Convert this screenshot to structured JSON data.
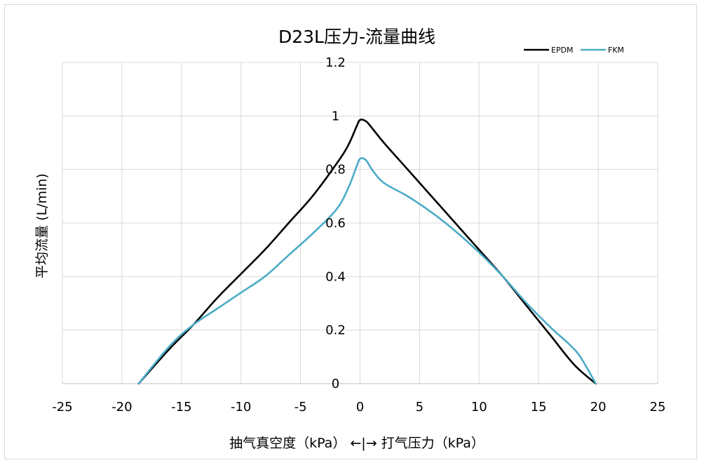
{
  "chart_data": {
    "type": "line",
    "title": "D23L压力-流量曲线",
    "ylabel": "平均流量 (L/min)",
    "xlabel": "抽气真空度（kPa） ←|→ 打气压力（kPa）",
    "xlim": [
      -25,
      25
    ],
    "ylim": [
      0,
      1.2
    ],
    "x_ticks": [
      "-25",
      "-20",
      "-15",
      "-10",
      "-5",
      "0",
      "5",
      "10",
      "15",
      "20",
      "25"
    ],
    "y_ticks": [
      "0",
      "0.2",
      "0.4",
      "0.6",
      "0.8",
      "1",
      "1.2"
    ],
    "grid": true,
    "legend_position": "top-right",
    "series": [
      {
        "name": "EPDM",
        "color": "#000000",
        "points": [
          [
            -18.6,
            0
          ],
          [
            -16,
            0.13
          ],
          [
            -14,
            0.22
          ],
          [
            -12,
            0.32
          ],
          [
            -10,
            0.41
          ],
          [
            -8,
            0.5
          ],
          [
            -6,
            0.6
          ],
          [
            -4,
            0.7
          ],
          [
            -2,
            0.82
          ],
          [
            -1,
            0.89
          ],
          [
            -0.3,
            0.96
          ],
          [
            0,
            0.985
          ],
          [
            0.5,
            0.98
          ],
          [
            1,
            0.955
          ],
          [
            2,
            0.9
          ],
          [
            4,
            0.8
          ],
          [
            6,
            0.7
          ],
          [
            8,
            0.6
          ],
          [
            10,
            0.5
          ],
          [
            12,
            0.4
          ],
          [
            14,
            0.29
          ],
          [
            16,
            0.18
          ],
          [
            18,
            0.07
          ],
          [
            19.8,
            0
          ]
        ]
      },
      {
        "name": "FKM",
        "color": "#4bacc6",
        "points": [
          [
            -18.6,
            0
          ],
          [
            -16,
            0.14
          ],
          [
            -14,
            0.22
          ],
          [
            -12,
            0.28
          ],
          [
            -10,
            0.34
          ],
          [
            -8,
            0.4
          ],
          [
            -6,
            0.48
          ],
          [
            -4,
            0.56
          ],
          [
            -2,
            0.65
          ],
          [
            -1,
            0.73
          ],
          [
            -0.3,
            0.81
          ],
          [
            0,
            0.84
          ],
          [
            0.5,
            0.835
          ],
          [
            1,
            0.8
          ],
          [
            2,
            0.75
          ],
          [
            4,
            0.7
          ],
          [
            6,
            0.64
          ],
          [
            8,
            0.57
          ],
          [
            10,
            0.49
          ],
          [
            12,
            0.4
          ],
          [
            14,
            0.3
          ],
          [
            16,
            0.21
          ],
          [
            17.5,
            0.15
          ],
          [
            18.5,
            0.1
          ],
          [
            19.8,
            0
          ]
        ]
      }
    ]
  }
}
